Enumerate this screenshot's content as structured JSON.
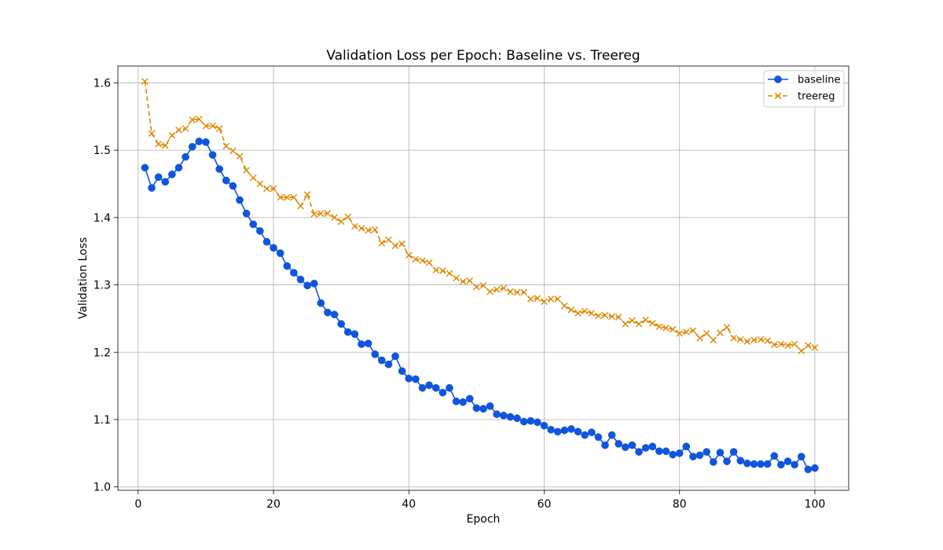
{
  "chart_data": {
    "type": "line",
    "title": "Validation Loss per Epoch: Baseline vs. Treereg",
    "xlabel": "Epoch",
    "ylabel": "Validation Loss",
    "xlim": [
      -3,
      105
    ],
    "ylim": [
      0.995,
      1.625
    ],
    "xticks": [
      0,
      20,
      40,
      60,
      80,
      100
    ],
    "xtick_labels": [
      "0",
      "20",
      "40",
      "60",
      "80",
      "100"
    ],
    "yticks": [
      1.0,
      1.1,
      1.2,
      1.3,
      1.4,
      1.5,
      1.6
    ],
    "ytick_labels": [
      "1.0",
      "1.1",
      "1.2",
      "1.3",
      "1.4",
      "1.5",
      "1.6"
    ],
    "grid": true,
    "legend_position": "top-right",
    "x": [
      1,
      2,
      3,
      4,
      5,
      6,
      7,
      8,
      9,
      10,
      11,
      12,
      13,
      14,
      15,
      16,
      17,
      18,
      19,
      20,
      21,
      22,
      23,
      24,
      25,
      26,
      27,
      28,
      29,
      30,
      31,
      32,
      33,
      34,
      35,
      36,
      37,
      38,
      39,
      40,
      41,
      42,
      43,
      44,
      45,
      46,
      47,
      48,
      49,
      50,
      51,
      52,
      53,
      54,
      55,
      56,
      57,
      58,
      59,
      60,
      61,
      62,
      63,
      64,
      65,
      66,
      67,
      68,
      69,
      70,
      71,
      72,
      73,
      74,
      75,
      76,
      77,
      78,
      79,
      80,
      81,
      82,
      83,
      84,
      85,
      86,
      87,
      88,
      89,
      90,
      91,
      92,
      93,
      94,
      95,
      96,
      97,
      98,
      99,
      100
    ],
    "series": [
      {
        "name": "baseline",
        "color": "#1155dd",
        "linestyle": "solid",
        "marker": "circle",
        "values": [
          1.474,
          1.444,
          1.46,
          1.453,
          1.464,
          1.474,
          1.49,
          1.505,
          1.513,
          1.512,
          1.493,
          1.472,
          1.455,
          1.447,
          1.426,
          1.406,
          1.39,
          1.38,
          1.364,
          1.355,
          1.347,
          1.328,
          1.318,
          1.308,
          1.299,
          1.302,
          1.273,
          1.259,
          1.256,
          1.242,
          1.23,
          1.227,
          1.212,
          1.213,
          1.197,
          1.188,
          1.182,
          1.194,
          1.172,
          1.161,
          1.16,
          1.147,
          1.151,
          1.147,
          1.14,
          1.147,
          1.127,
          1.126,
          1.131,
          1.117,
          1.116,
          1.12,
          1.108,
          1.106,
          1.104,
          1.102,
          1.097,
          1.098,
          1.096,
          1.091,
          1.085,
          1.082,
          1.084,
          1.086,
          1.082,
          1.077,
          1.081,
          1.074,
          1.062,
          1.077,
          1.064,
          1.059,
          1.062,
          1.052,
          1.058,
          1.06,
          1.053,
          1.053,
          1.048,
          1.05,
          1.06,
          1.045,
          1.047,
          1.052,
          1.037,
          1.051,
          1.038,
          1.052,
          1.039,
          1.035,
          1.034,
          1.034,
          1.034,
          1.046,
          1.033,
          1.038,
          1.033,
          1.045,
          1.026,
          1.028
        ]
      },
      {
        "name": "treereg",
        "color": "#dd8800",
        "linestyle": "dashed",
        "marker": "x",
        "values": [
          1.602,
          1.525,
          1.509,
          1.507,
          1.522,
          1.53,
          1.532,
          1.545,
          1.546,
          1.536,
          1.536,
          1.532,
          1.506,
          1.499,
          1.491,
          1.47,
          1.459,
          1.45,
          1.443,
          1.443,
          1.43,
          1.43,
          1.43,
          1.417,
          1.434,
          1.405,
          1.406,
          1.406,
          1.4,
          1.394,
          1.401,
          1.387,
          1.384,
          1.381,
          1.382,
          1.362,
          1.367,
          1.358,
          1.361,
          1.344,
          1.338,
          1.336,
          1.333,
          1.322,
          1.321,
          1.317,
          1.31,
          1.305,
          1.306,
          1.297,
          1.299,
          1.29,
          1.293,
          1.295,
          1.29,
          1.289,
          1.289,
          1.279,
          1.28,
          1.275,
          1.279,
          1.279,
          1.269,
          1.263,
          1.258,
          1.261,
          1.258,
          1.254,
          1.255,
          1.253,
          1.252,
          1.242,
          1.247,
          1.242,
          1.248,
          1.243,
          1.238,
          1.236,
          1.234,
          1.228,
          1.23,
          1.232,
          1.221,
          1.228,
          1.218,
          1.229,
          1.237,
          1.221,
          1.219,
          1.216,
          1.218,
          1.219,
          1.217,
          1.211,
          1.212,
          1.21,
          1.212,
          1.202,
          1.21,
          1.207
        ]
      }
    ]
  }
}
